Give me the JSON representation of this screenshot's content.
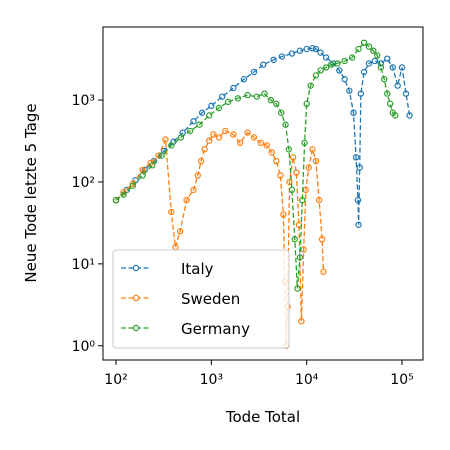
{
  "chart_data": {
    "type": "line",
    "x_label": "Tode Total",
    "y_label": "Neue Tode letzte 5 Tage",
    "xscale": "log",
    "yscale": "log",
    "xlim": [
      73,
      166000
    ],
    "ylim": [
      0.67,
      7800
    ],
    "xticks": [
      {
        "value": 100,
        "label": "10²"
      },
      {
        "value": 1000,
        "label": "10³"
      },
      {
        "value": 10000,
        "label": "10⁴"
      },
      {
        "value": 100000,
        "label": "10⁵"
      }
    ],
    "yticks": [
      {
        "value": 1,
        "label": "10⁰"
      },
      {
        "value": 10,
        "label": "10¹"
      },
      {
        "value": 100,
        "label": "10²"
      },
      {
        "value": 1000,
        "label": "10³"
      }
    ],
    "legend": "lower left",
    "series": [
      {
        "name": "Italy",
        "color": "#1f77b4",
        "x": [
          100,
          130,
          160,
          200,
          250,
          320,
          400,
          500,
          650,
          800,
          1000,
          1300,
          1700,
          2200,
          2800,
          3500,
          4500,
          5500,
          7000,
          8500,
          10000,
          11500,
          12500,
          14000,
          16000,
          19000,
          22000,
          25000,
          28000,
          31000,
          33000,
          34500,
          35000,
          36000,
          37000,
          40000,
          45000,
          52000,
          60000,
          70000,
          80000,
          90000,
          100000,
          110000,
          120000
        ],
        "values": [
          60,
          80,
          105,
          140,
          180,
          240,
          310,
          400,
          550,
          700,
          850,
          1100,
          1400,
          1800,
          2200,
          2700,
          3100,
          3400,
          3700,
          4000,
          4200,
          4300,
          4200,
          3800,
          3300,
          2800,
          2300,
          1800,
          1300,
          700,
          200,
          60,
          30,
          150,
          1200,
          2200,
          2800,
          3000,
          2800,
          3200,
          2500,
          1500,
          2500,
          1200,
          650
        ]
      },
      {
        "name": "Sweden",
        "color": "#ff7f0e",
        "x": [
          100,
          120,
          150,
          190,
          230,
          280,
          330,
          380,
          420,
          470,
          550,
          650,
          720,
          780,
          850,
          950,
          1050,
          1200,
          1400,
          1700,
          2000,
          2400,
          2800,
          3300,
          3800,
          4300,
          4800,
          5300,
          5700,
          5900,
          6100,
          6300,
          6600,
          7200,
          7800,
          8300,
          8800,
          9300,
          9800,
          10500,
          11500,
          12500,
          13500,
          14500,
          15000
        ],
        "values": [
          60,
          75,
          95,
          140,
          170,
          210,
          330,
          43,
          16,
          25,
          60,
          80,
          120,
          180,
          250,
          320,
          380,
          350,
          420,
          380,
          300,
          400,
          350,
          300,
          280,
          230,
          180,
          120,
          40,
          6,
          1,
          3,
          100,
          200,
          130,
          30,
          2,
          15,
          80,
          150,
          250,
          180,
          60,
          20,
          8
        ]
      },
      {
        "name": "Germany",
        "color": "#2ca02c",
        "x": [
          100,
          120,
          150,
          190,
          240,
          300,
          380,
          480,
          600,
          750,
          950,
          1200,
          1500,
          1900,
          2400,
          3000,
          3600,
          4200,
          4800,
          5400,
          6000,
          6500,
          7000,
          7500,
          8000,
          8500,
          9000,
          9500,
          10000,
          11000,
          12500,
          14000,
          16000,
          18000,
          21000,
          25000,
          30000,
          35000,
          40000,
          45000,
          50000,
          55000,
          60000,
          65000,
          70000,
          75000,
          80000,
          85000
        ],
        "values": [
          60,
          70,
          90,
          120,
          160,
          210,
          280,
          350,
          420,
          500,
          650,
          800,
          950,
          1050,
          1150,
          1100,
          1200,
          1000,
          900,
          700,
          500,
          250,
          80,
          20,
          5,
          12,
          60,
          300,
          900,
          1500,
          2000,
          2300,
          2500,
          2700,
          2800,
          3000,
          3300,
          4200,
          5000,
          4500,
          4000,
          3500,
          2500,
          1800,
          1200,
          900,
          700,
          650
        ]
      }
    ]
  }
}
